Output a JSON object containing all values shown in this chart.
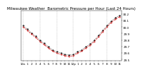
{
  "title": "Milwaukee Weather  Barometric Pressure per Hour (Last 24 Hours)",
  "background_color": "#ffffff",
  "plot_bg_color": "#ffffff",
  "grid_color": "#999999",
  "line1_color": "#000000",
  "line2_color": "#cc0000",
  "hours": [
    0,
    1,
    2,
    3,
    4,
    5,
    6,
    7,
    8,
    9,
    10,
    11,
    12,
    13,
    14,
    15,
    16,
    17,
    18,
    19,
    20,
    21,
    22,
    23
  ],
  "pressure": [
    30.02,
    29.97,
    29.91,
    29.86,
    29.8,
    29.75,
    29.7,
    29.65,
    29.62,
    29.6,
    29.58,
    29.57,
    29.58,
    29.62,
    29.65,
    29.7,
    29.74,
    29.8,
    29.87,
    29.95,
    30.02,
    30.09,
    30.14,
    30.18
  ],
  "pressure2": [
    30.0,
    29.95,
    29.89,
    29.84,
    29.78,
    29.73,
    29.68,
    29.63,
    29.6,
    29.58,
    29.56,
    29.55,
    29.56,
    29.6,
    29.63,
    29.68,
    29.72,
    29.78,
    29.85,
    29.93,
    30.0,
    30.07,
    30.12,
    30.16
  ],
  "ylim_min": 29.48,
  "ylim_max": 30.25,
  "title_fontsize": 4.0,
  "tick_fontsize": 3.0,
  "ytick_values": [
    29.5,
    29.6,
    29.7,
    29.8,
    29.9,
    30.0,
    30.1,
    30.2
  ],
  "xtick_labels": [
    "12a",
    "1",
    "2",
    "3",
    "4",
    "5",
    "6",
    "7",
    "8",
    "9",
    "10",
    "11",
    "12p",
    "1",
    "2",
    "3",
    "4",
    "5",
    "6",
    "7",
    "8",
    "9",
    "10",
    "11"
  ]
}
